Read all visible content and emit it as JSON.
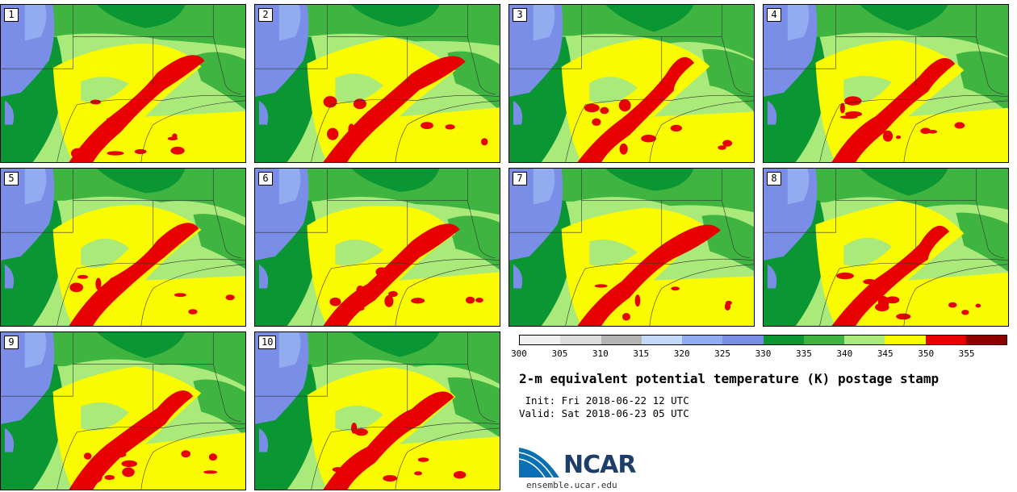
{
  "stamps": [
    {
      "label": "1",
      "variant": 0
    },
    {
      "label": "2",
      "variant": 1
    },
    {
      "label": "3",
      "variant": 2
    },
    {
      "label": "4",
      "variant": 3
    },
    {
      "label": "5",
      "variant": 4
    },
    {
      "label": "6",
      "variant": 5
    },
    {
      "label": "7",
      "variant": 6
    },
    {
      "label": "8",
      "variant": 7
    },
    {
      "label": "9",
      "variant": 8
    },
    {
      "label": "10",
      "variant": 9
    }
  ],
  "colorbar": {
    "ticks": [
      "300",
      "305",
      "310",
      "315",
      "320",
      "325",
      "330",
      "335",
      "340",
      "345",
      "350",
      "355"
    ],
    "colors": [
      "#f0f0f0",
      "#dcdcdc",
      "#b4b4b4",
      "#c4d8f8",
      "#92acf0",
      "#7a8ee8",
      "#0a9632",
      "#40b440",
      "#aaea7a",
      "#fafa00",
      "#e60000",
      "#8c0000"
    ]
  },
  "title": "2-m equivalent potential temperature (K) postage stamp",
  "init": " Init: Fri 2018-06-22 12 UTC",
  "valid": "Valid: Sat 2018-06-23 05 UTC",
  "logo": {
    "text": "NCAR",
    "url": "ensemble.ucar.edu",
    "color": "#1d3d6b"
  }
}
